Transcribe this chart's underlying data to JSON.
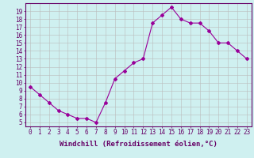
{
  "x": [
    0,
    1,
    2,
    3,
    4,
    5,
    6,
    7,
    8,
    9,
    10,
    11,
    12,
    13,
    14,
    15,
    16,
    17,
    18,
    19,
    20,
    21,
    22,
    23
  ],
  "y": [
    9.5,
    8.5,
    7.5,
    6.5,
    6.0,
    5.5,
    5.5,
    5.0,
    7.5,
    10.5,
    11.5,
    12.5,
    13.0,
    17.5,
    18.5,
    19.5,
    18.0,
    17.5,
    17.5,
    16.5,
    15.0,
    15.0,
    14.0,
    13.0
  ],
  "line_color": "#990099",
  "marker": "D",
  "marker_size": 2.0,
  "bg_color": "#cff0f0",
  "grid_color": "#bbbbbb",
  "xlabel": "Windchill (Refroidissement éolien,°C)",
  "ylabel_ticks": [
    5,
    6,
    7,
    8,
    9,
    10,
    11,
    12,
    13,
    14,
    15,
    16,
    17,
    18,
    19
  ],
  "xlim": [
    -0.5,
    23.5
  ],
  "ylim": [
    4.5,
    20.0
  ],
  "tick_color": "#660066",
  "label_color": "#660066",
  "xlabel_fontsize": 6.5,
  "tick_fontsize": 5.5,
  "linewidth": 0.8
}
